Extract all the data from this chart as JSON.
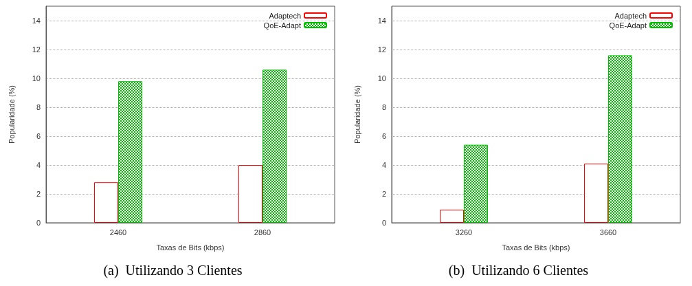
{
  "chart_data": [
    {
      "type": "bar",
      "title": "(a)  Utilizando 3 Clientes",
      "xlabel": "Taxas de Bits (kbps)",
      "ylabel": "Popularidade (%)",
      "categories": [
        "2460",
        "2860"
      ],
      "series": [
        {
          "name": "Adaptech",
          "color": "#ff0000",
          "values": [
            2.8,
            4.0
          ]
        },
        {
          "name": "QoE-Adapt",
          "color": "#00c000",
          "values": [
            9.8,
            10.6
          ]
        }
      ],
      "ylim": [
        0,
        15
      ],
      "yticks": [
        0,
        2,
        4,
        6,
        8,
        10,
        12,
        14
      ],
      "grid": "y",
      "legend": "top right"
    },
    {
      "type": "bar",
      "title": "(b)  Utilizando 6 Clientes",
      "xlabel": "Taxas de Bits (kbps)",
      "ylabel": "Popularidade (%)",
      "categories": [
        "3260",
        "3660"
      ],
      "series": [
        {
          "name": "Adaptech",
          "color": "#ff0000",
          "values": [
            0.9,
            4.1
          ]
        },
        {
          "name": "QoE-Adapt",
          "color": "#00c000",
          "values": [
            5.4,
            11.6
          ]
        }
      ],
      "ylim": [
        0,
        15
      ],
      "yticks": [
        0,
        2,
        4,
        6,
        8,
        10,
        12,
        14
      ],
      "grid": "y",
      "legend": "top right"
    }
  ]
}
